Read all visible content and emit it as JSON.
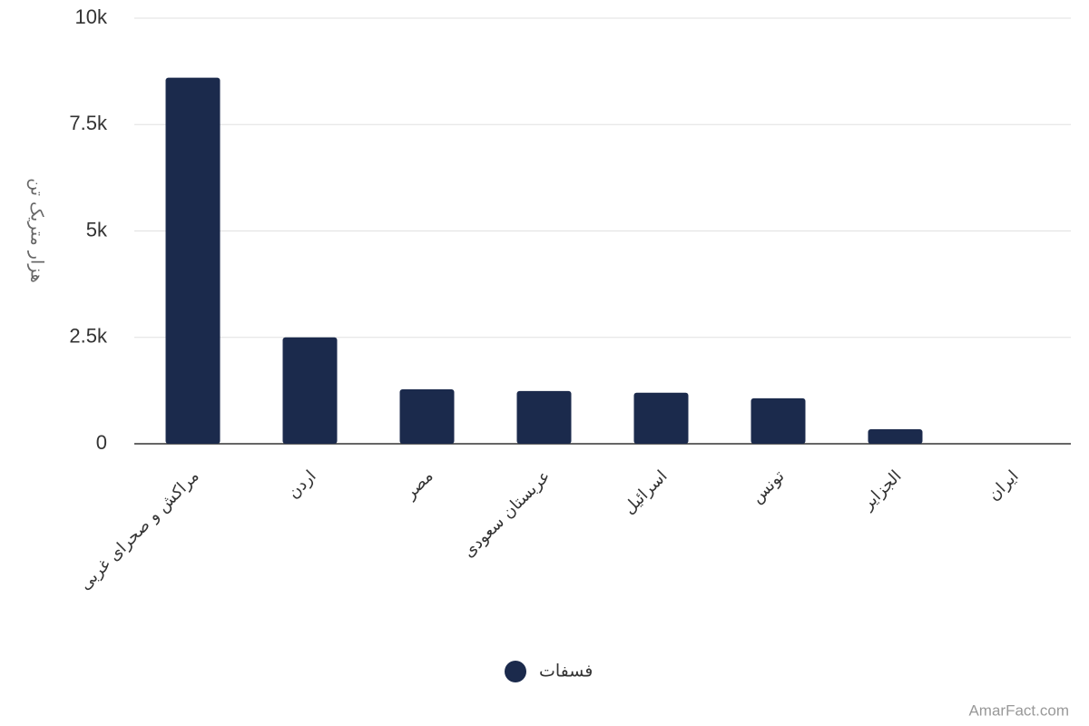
{
  "chart_data": {
    "type": "bar",
    "y_label": "هزار متریک تن",
    "categories": [
      "مراکش و صحرای غربی",
      "اردن",
      "مصر",
      "عربستان سعودی",
      "اسرائیل",
      "تونس",
      "الجزایر",
      "ایران"
    ],
    "series": [
      {
        "name": "فسفات",
        "color": "#1b2a4c",
        "values": [
          8600,
          2500,
          1280,
          1240,
          1200,
          1070,
          340,
          0
        ]
      }
    ],
    "ylim": [
      0,
      10000
    ],
    "yticks": [
      0,
      {
        "value": 2500,
        "label": "2.5k"
      },
      {
        "value": 5000,
        "label": "5k"
      },
      {
        "value": 7500,
        "label": "7.5k"
      },
      {
        "value": 10000,
        "label": "10k"
      }
    ],
    "grid": true,
    "credit": "AmarFact.com"
  }
}
